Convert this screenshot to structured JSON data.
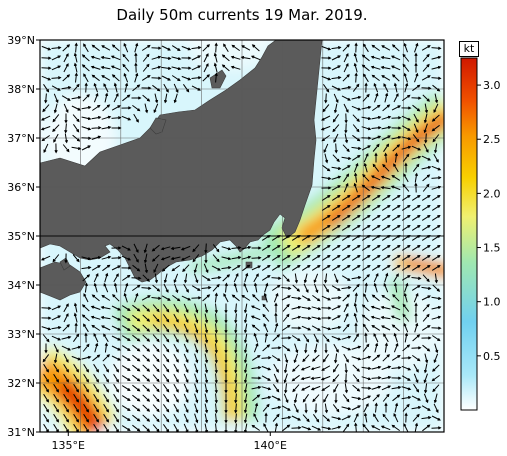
{
  "title": "Daily 50m currents 19 Mar. 2019.",
  "map": {
    "lon_range": [
      134.3,
      144.3
    ],
    "lat_range": [
      31,
      39
    ],
    "y_ticks": [
      {
        "lat": 39,
        "label": "39°N"
      },
      {
        "lat": 38,
        "label": "38°N"
      },
      {
        "lat": 37,
        "label": "37°N"
      },
      {
        "lat": 36,
        "label": "36°N"
      },
      {
        "lat": 35,
        "label": "35°N"
      },
      {
        "lat": 34,
        "label": "34°N"
      },
      {
        "lat": 33,
        "label": "33°N"
      },
      {
        "lat": 32,
        "label": "32°N"
      },
      {
        "lat": 31,
        "label": "31°N"
      }
    ],
    "x_ticks": [
      {
        "lon": 135,
        "label": "135°E"
      },
      {
        "lon": 140,
        "label": "140°E"
      }
    ],
    "land_color": "#5b5b5b",
    "ocean_color": "#ffffff"
  },
  "colorbar": {
    "unit": "kt",
    "range": [
      0,
      3.25
    ],
    "ticks": [
      {
        "value": 0.5,
        "label": "0.5"
      },
      {
        "value": 1.0,
        "label": "1.0"
      },
      {
        "value": 1.5,
        "label": "1.5"
      },
      {
        "value": 2.0,
        "label": "2.0"
      },
      {
        "value": 2.5,
        "label": "2.5"
      },
      {
        "value": 3.0,
        "label": "3.0"
      }
    ],
    "colors": [
      "#ffffff",
      "#a8e8f8",
      "#70d0f0",
      "#a0e8b0",
      "#f0f070",
      "#f8d000",
      "#f89800",
      "#f05000",
      "#d01800"
    ]
  }
}
